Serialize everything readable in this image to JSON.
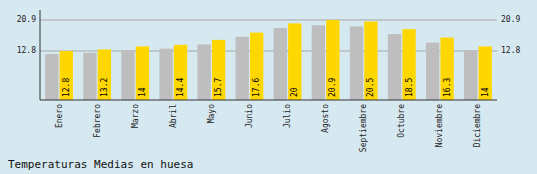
{
  "chart_data": {
    "type": "bar",
    "title": "Temperaturas Medias en huesa",
    "categories": [
      "Enero",
      "Febrero",
      "Marzo",
      "Abril",
      "Mayo",
      "Junio",
      "Julio",
      "Agosto",
      "Septiembre",
      "Octubre",
      "Noviembre",
      "Diciembre"
    ],
    "series": [
      {
        "color": "#BEBEBE",
        "values": [
          12.0,
          12.3,
          13.0,
          13.4,
          14.5,
          16.5,
          18.8,
          19.5,
          19.2,
          17.2,
          15.0,
          13.0
        ]
      },
      {
        "color": "#FFD700",
        "values": [
          12.8,
          13.2,
          14.0,
          14.4,
          15.7,
          17.6,
          20.0,
          20.9,
          20.5,
          18.5,
          16.3,
          14.0
        ],
        "data_labels": true
      }
    ],
    "ylim": [
      0,
      23.5
    ],
    "yticks": [
      12.8,
      20.9
    ],
    "grid": true
  }
}
